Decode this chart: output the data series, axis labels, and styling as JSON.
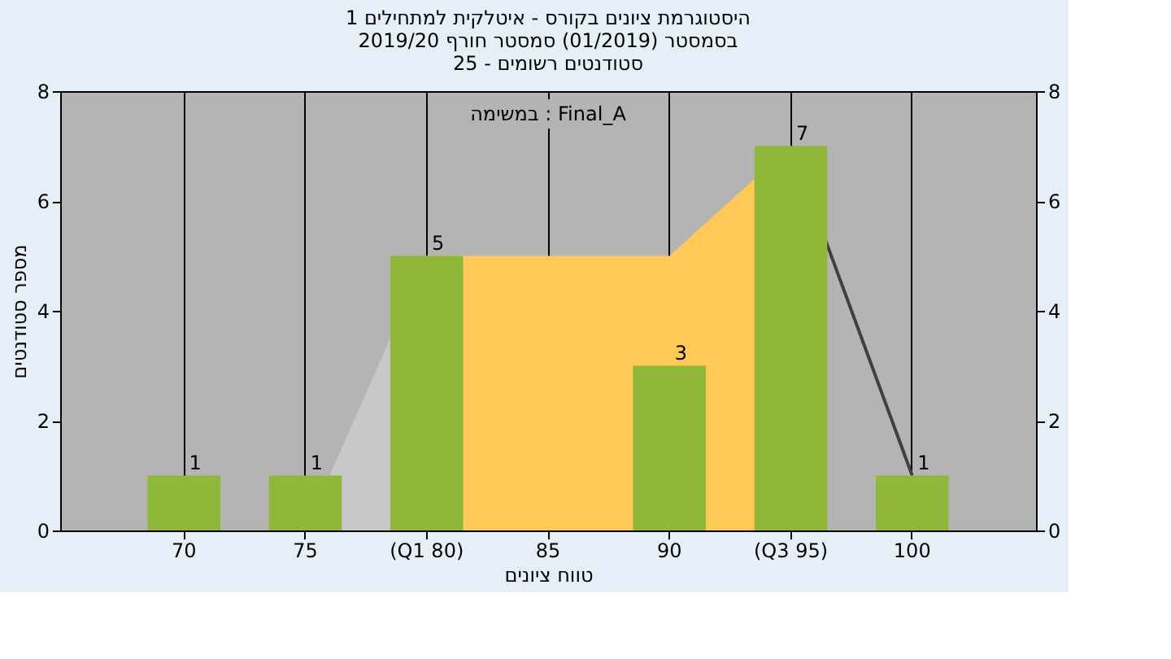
{
  "chart_data": {
    "type": "bar",
    "title": [
      "היסטוגרמת ציונים בקורס - איטלקית למתחילים 1",
      "בסמסטר (01/2019) סמסטר חורף 2019/20",
      "סטודנטים רשומים - 25"
    ],
    "xlabel": "טווח ציונים",
    "ylabel": "מספר סטודנטים",
    "annotations": [
      "במשימה : Final_A"
    ],
    "categories": [
      "70",
      "75",
      "(Q1 80)",
      "85",
      "90",
      "(Q3 95)",
      "100"
    ],
    "series": [
      {
        "type": "area",
        "color": "#c8c8c8",
        "values": [
          0,
          0,
          5,
          null,
          null,
          null,
          null
        ]
      },
      {
        "type": "area",
        "color": "#ffc957",
        "values": [
          null,
          null,
          5,
          5,
          5,
          7,
          null
        ]
      },
      {
        "type": "line",
        "color": "#404040",
        "values": [
          null,
          null,
          null,
          null,
          null,
          7,
          1
        ]
      },
      {
        "color": "#8fb83a",
        "values": [
          1,
          1,
          5,
          0,
          3,
          7,
          1
        ],
        "value_labels": [
          "1",
          "1",
          "5",
          null,
          "3",
          "7",
          "1"
        ]
      }
    ],
    "ylim": [
      0,
      8
    ],
    "yticks": [
      0,
      2,
      4,
      6,
      8
    ],
    "y2lim": [
      0,
      8
    ],
    "y2ticks": [
      0,
      2,
      4,
      6,
      8
    ],
    "grid": "x"
  }
}
